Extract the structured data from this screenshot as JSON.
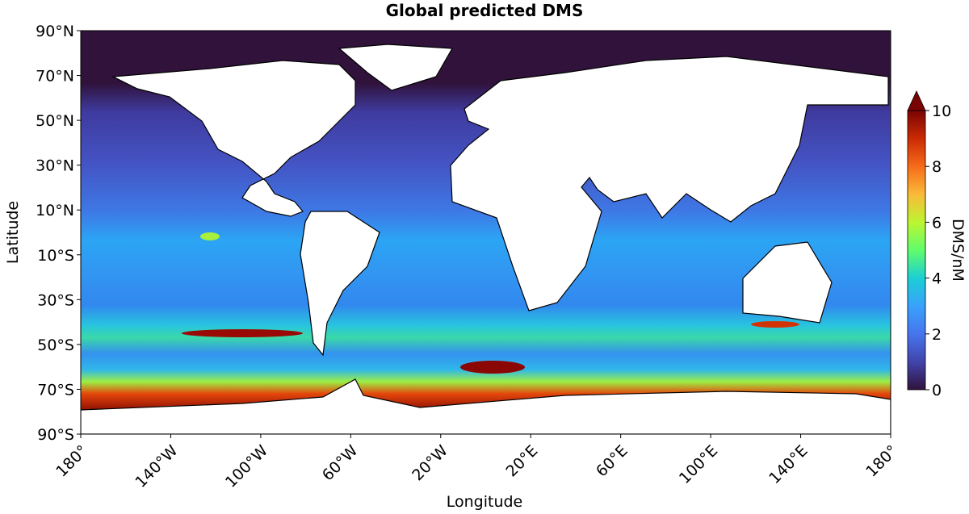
{
  "chart_data": {
    "type": "map",
    "title": "Global predicted DMS",
    "x_label": "Longitude",
    "y_label": "Latitude",
    "xlim": [
      -180,
      180
    ],
    "ylim": [
      -90,
      90
    ],
    "xticks": [
      {
        "value": -180,
        "label": "180°"
      },
      {
        "value": -140,
        "label": "140°W"
      },
      {
        "value": -100,
        "label": "100°W"
      },
      {
        "value": -60,
        "label": "60°W"
      },
      {
        "value": -20,
        "label": "20°W"
      },
      {
        "value": 20,
        "label": "20°E"
      },
      {
        "value": 60,
        "label": "60°E"
      },
      {
        "value": 100,
        "label": "100°E"
      },
      {
        "value": 140,
        "label": "140°E"
      },
      {
        "value": 180,
        "label": "180°"
      }
    ],
    "yticks": [
      {
        "value": 90,
        "label": "90°N"
      },
      {
        "value": 70,
        "label": "70°N"
      },
      {
        "value": 50,
        "label": "50°N"
      },
      {
        "value": 30,
        "label": "30°N"
      },
      {
        "value": 10,
        "label": "10°N"
      },
      {
        "value": -10,
        "label": "10°S"
      },
      {
        "value": -30,
        "label": "30°S"
      },
      {
        "value": -50,
        "label": "50°S"
      },
      {
        "value": -70,
        "label": "70°S"
      },
      {
        "value": -90,
        "label": "90°S"
      }
    ],
    "colorbar": {
      "label": "DMS/nM",
      "lim": [
        0,
        10
      ],
      "ticks": [
        0,
        2,
        4,
        6,
        8,
        10
      ]
    }
  }
}
